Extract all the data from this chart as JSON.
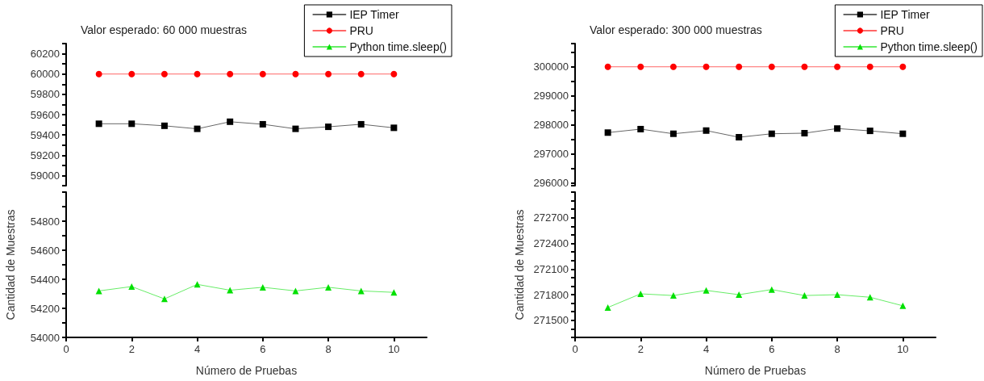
{
  "chart_data": [
    {
      "type": "line",
      "annotations": [
        "Valor esperado: 60 000 muestras"
      ],
      "x": [
        1,
        2,
        3,
        4,
        5,
        6,
        7,
        8,
        9,
        10
      ],
      "xticks": [
        0,
        2,
        4,
        6,
        8,
        10
      ],
      "ylim": [
        58900,
        60300
      ],
      "yticks": [
        {
          "value": 58900,
          "label": null
        },
        59000,
        {
          "value": 59100,
          "label": null
        },
        59200,
        {
          "value": 59300,
          "label": null
        },
        59400,
        {
          "value": 59500,
          "label": null
        },
        59600,
        {
          "value": 59700,
          "label": null
        },
        59800,
        {
          "value": 59900,
          "label": null
        },
        60000,
        {
          "value": 60100,
          "label": null
        },
        60200,
        {
          "value": 60300,
          "label": null
        }
      ],
      "tick_labels": "y",
      "grid": false,
      "legend": "top right",
      "series": [
        {
          "name": "IEP Timer",
          "color": "#000000",
          "marker": "square",
          "values": [
            59510,
            59510,
            59490,
            59460,
            59530,
            59505,
            59460,
            59480,
            59505,
            59470
          ]
        },
        {
          "name": "PRU",
          "color": "#ff0000",
          "marker": "circle",
          "values": [
            60000,
            60000,
            60000,
            60000,
            60000,
            60000,
            60000,
            60000,
            60000,
            60000
          ]
        },
        {
          "name": "Python time.sleep()",
          "color": "#00e000",
          "marker": "triangle",
          "values": [
            null,
            null,
            null,
            null,
            null,
            null,
            null,
            null,
            null,
            null
          ]
        }
      ]
    },
    {
      "type": "line",
      "xlabel": "Número de Pruebas",
      "ylabel": "Cantidad de Muestras",
      "x": [
        1,
        2,
        3,
        4,
        5,
        6,
        7,
        8,
        9,
        10
      ],
      "xlim": [
        0,
        11
      ],
      "xticks": [
        0,
        2,
        4,
        6,
        8,
        10
      ],
      "ylim": [
        54000,
        55000
      ],
      "yticks": [
        54000,
        {
          "value": 54100,
          "label": null
        },
        54200,
        {
          "value": 54300,
          "label": null
        },
        54400,
        {
          "value": 54500,
          "label": null
        },
        54600,
        {
          "value": 54700,
          "label": null
        },
        54800,
        {
          "value": 54900,
          "label": null
        },
        {
          "value": 55000,
          "label": null
        }
      ],
      "grid": false,
      "series": [
        {
          "color": "#00e000",
          "marker": "triangle",
          "values": [
            54320,
            54350,
            54265,
            54365,
            54325,
            54345,
            54320,
            54345,
            54320,
            54310
          ]
        }
      ]
    },
    {
      "type": "line",
      "annotations": [
        "Valor esperado: 300 000 muestras"
      ],
      "x": [
        1,
        2,
        3,
        4,
        5,
        6,
        7,
        8,
        9,
        10
      ],
      "xticks": [
        0,
        2,
        4,
        6,
        8,
        10
      ],
      "ylim": [
        295900,
        300800
      ],
      "yticks": [
        {
          "value": 295900,
          "label": null
        },
        296000,
        {
          "value": 296500,
          "label": null
        },
        297000,
        {
          "value": 297500,
          "label": null
        },
        298000,
        {
          "value": 298500,
          "label": null
        },
        299000,
        {
          "value": 299500,
          "label": null
        },
        300000,
        {
          "value": 300500,
          "label": null
        },
        {
          "value": 300800,
          "label": null
        }
      ],
      "tick_labels": "y",
      "grid": false,
      "legend": "top right",
      "series": [
        {
          "name": "IEP Timer",
          "color": "#000000",
          "marker": "square",
          "values": [
            297730,
            297850,
            297690,
            297800,
            297570,
            297690,
            297710,
            297870,
            297790,
            297690
          ]
        },
        {
          "name": "PRU",
          "color": "#ff0000",
          "marker": "circle",
          "values": [
            300000,
            300000,
            300000,
            300000,
            300000,
            300000,
            300000,
            300000,
            300000,
            300000
          ]
        },
        {
          "name": "Python time.sleep()",
          "color": "#00e000",
          "marker": "triangle",
          "values": [
            null,
            null,
            null,
            null,
            null,
            null,
            null,
            null,
            null,
            null
          ]
        }
      ]
    },
    {
      "type": "line",
      "xlabel": "Número de Pruebas",
      "ylabel": "Cantidad de Muestras",
      "x": [
        1,
        2,
        3,
        4,
        5,
        6,
        7,
        8,
        9,
        10
      ],
      "xlim": [
        0,
        11
      ],
      "xticks": [
        0,
        2,
        4,
        6,
        8,
        10
      ],
      "ylim": [
        271300,
        273000
      ],
      "yticks": [
        {
          "value": 271300,
          "label": null
        },
        {
          "value": 271400,
          "label": null
        },
        271500,
        {
          "value": 271600,
          "label": null
        },
        {
          "value": 271700,
          "label": null
        },
        271800,
        {
          "value": 271900,
          "label": null
        },
        {
          "value": 272000,
          "label": null
        },
        272100,
        {
          "value": 272200,
          "label": null
        },
        {
          "value": 272300,
          "label": null
        },
        272400,
        {
          "value": 272500,
          "label": null
        },
        {
          "value": 272600,
          "label": null
        },
        272700,
        {
          "value": 272800,
          "label": null
        },
        {
          "value": 272900,
          "label": null
        },
        {
          "value": 273000,
          "label": null
        }
      ],
      "grid": false,
      "series": [
        {
          "color": "#00e000",
          "marker": "triangle",
          "values": [
            271650,
            271810,
            271790,
            271850,
            271800,
            271860,
            271790,
            271800,
            271770,
            271670
          ]
        }
      ]
    }
  ]
}
